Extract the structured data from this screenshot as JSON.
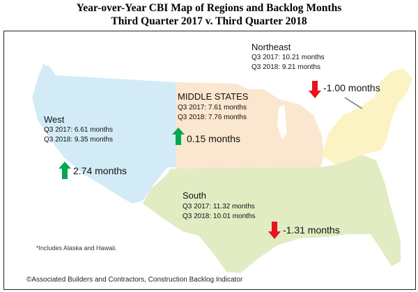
{
  "title_line1": "Year-over-Year CBI Map of Regions and Backlog Months",
  "title_line2": "Third Quarter 2017 v. Third Quarter 2018",
  "regions": {
    "northeast": {
      "name": "Northeast",
      "q3_2017": "Q3 2017:  10.21 months",
      "q3_2018": "Q3 2018:  9.21 months",
      "change": "-1.00 months",
      "direction": "down",
      "color": "#fbf3c4"
    },
    "middle": {
      "name": "MIDDLE STATES",
      "q3_2017": "Q3 2017:  7.61 months",
      "q3_2018": "Q3 2018:  7.76 months",
      "change": "0.15 months",
      "direction": "up",
      "color": "#fbe6cf"
    },
    "west": {
      "name": "West",
      "q3_2017": "Q3 2017:  6.61 months",
      "q3_2018": "Q3 2018:  9.35 months",
      "change": "2.74 months",
      "direction": "up",
      "color": "#d2ebf7"
    },
    "south": {
      "name": "South",
      "q3_2017": "Q3 2017:  11.32 months",
      "q3_2018": "Q3 2018:  10.01 months",
      "change": "-1.31 months",
      "direction": "down",
      "color": "#e1ecc3"
    }
  },
  "colors": {
    "up_arrow": "#00a651",
    "down_arrow": "#e8141b"
  },
  "footnote": "*Includes Alaska and Hawaii.",
  "copyright": "©Associated Builders and Contractors, Construction Backlog Indicator"
}
